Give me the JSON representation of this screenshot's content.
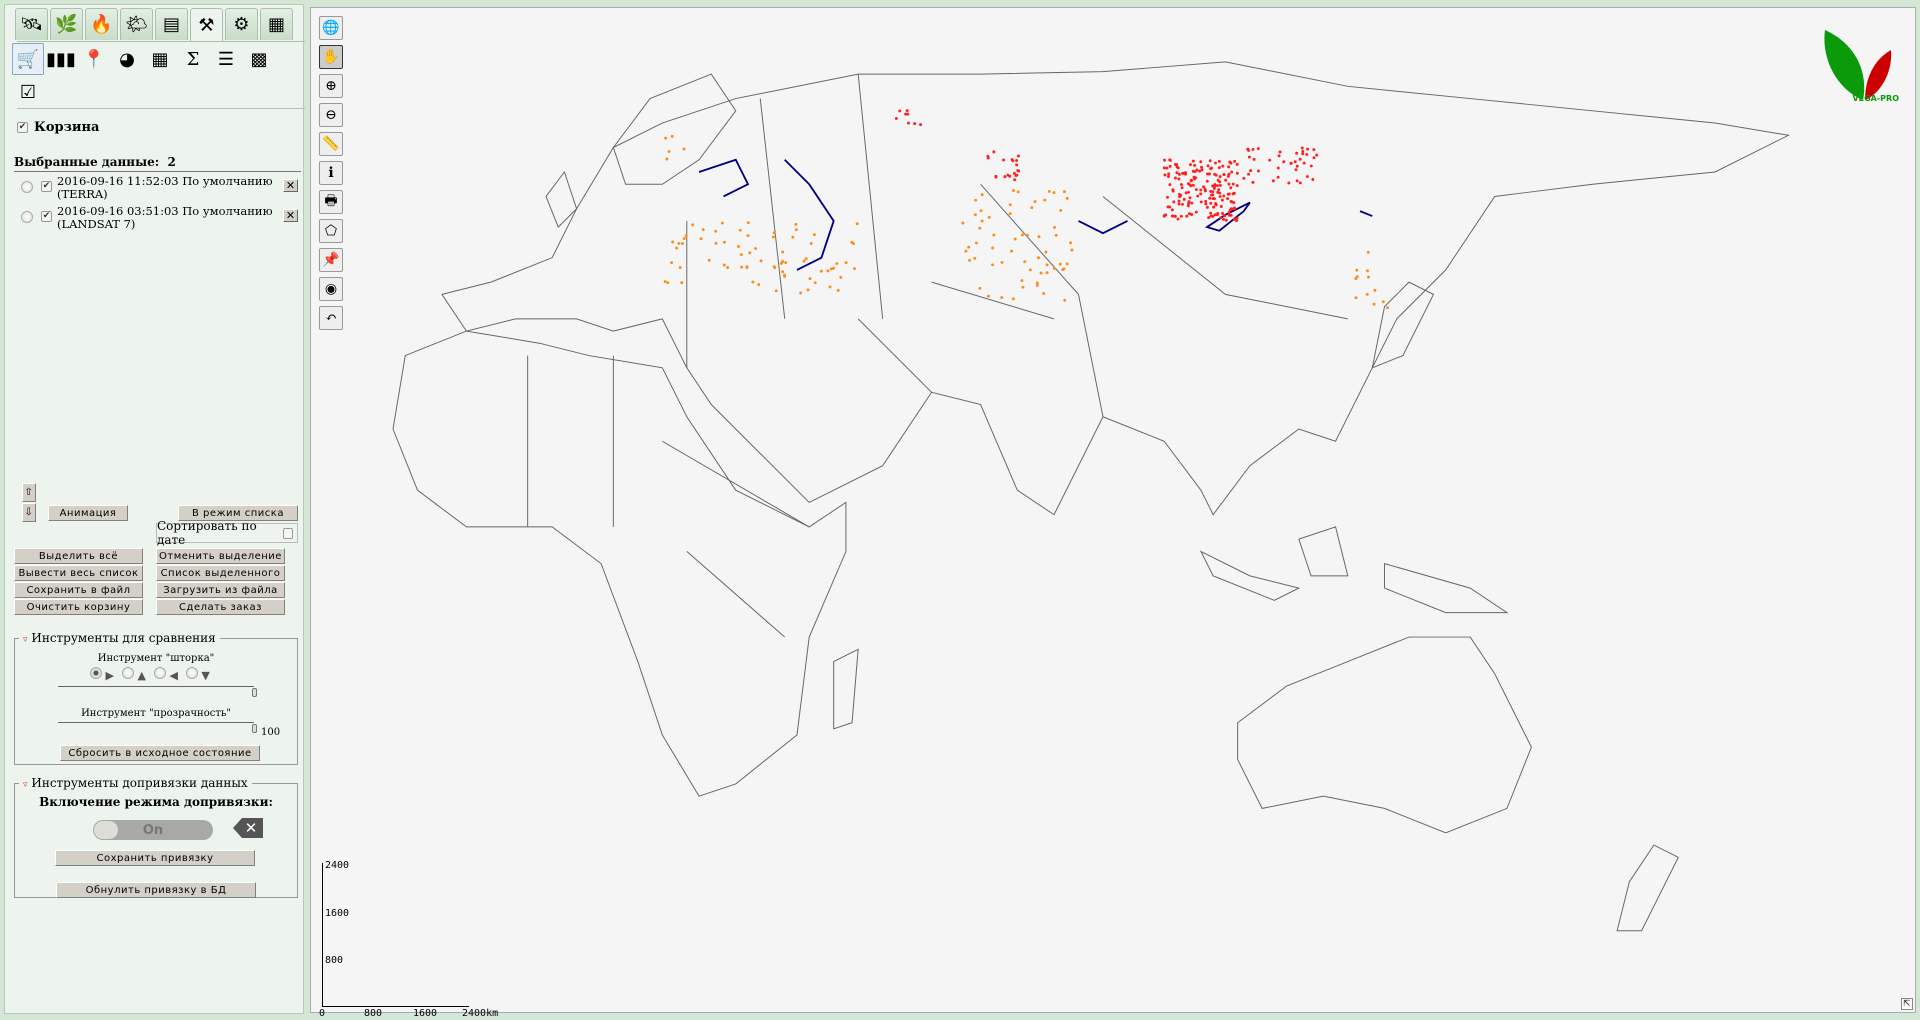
{
  "tabs": [
    {
      "icon": "satellite-icon",
      "glyph": "🛰"
    },
    {
      "icon": "plant-icon",
      "glyph": "🌿"
    },
    {
      "icon": "fire-icon",
      "glyph": "🔥"
    },
    {
      "icon": "weather-icon",
      "glyph": "🌤"
    },
    {
      "icon": "layers-icon",
      "glyph": "▤"
    },
    {
      "icon": "tools-icon",
      "glyph": "⚒",
      "active": true
    },
    {
      "icon": "gear-icon",
      "glyph": "⚙"
    },
    {
      "icon": "table-icon",
      "glyph": "▦"
    }
  ],
  "tools": [
    {
      "icon": "cart-icon",
      "glyph": "🛒",
      "active": true
    },
    {
      "icon": "bands-icon",
      "glyph": "▮▮▮"
    },
    {
      "icon": "location-pin-icon",
      "glyph": "📍"
    },
    {
      "icon": "pie-chart-icon",
      "glyph": "◕"
    },
    {
      "icon": "calculator-icon",
      "glyph": "▦"
    },
    {
      "icon": "sum-icon",
      "glyph": "Σ"
    },
    {
      "icon": "list-icon",
      "glyph": "☰"
    },
    {
      "icon": "map-icon",
      "glyph": "▩"
    },
    {
      "icon": "checklist-icon",
      "glyph": "☑"
    }
  ],
  "basket": {
    "label": "Корзина",
    "checked": true,
    "selected_label": "Выбранные данные:",
    "selected_count": "2",
    "items": [
      {
        "text": "2016-09-16 11:52:03 По умолчанию (TERRA)",
        "checked": true
      },
      {
        "text": "2016-09-16 03:51:03 По умолчанию (LANDSAT 7)",
        "checked": true
      }
    ]
  },
  "buttons": {
    "up": "⇧",
    "down": "⇩",
    "animation": "Анимация",
    "list_mode": "В режим списка",
    "sort_by_date": "Сортировать по дате",
    "select_all": "Выделить всё",
    "deselect": "Отменить выделение",
    "show_all": "Вывести весь список",
    "selected_list": "Список выделенного",
    "save_file": "Сохранить в файл",
    "load_file": "Загрузить из файла",
    "clear_basket": "Очистить корзину",
    "make_order": "Сделать заказ"
  },
  "compare": {
    "title": "Инструменты для сравнения",
    "curtain_label": "Инструмент \"шторка\"",
    "directions": [
      "▶",
      "▲",
      "◀",
      "▼"
    ],
    "selected_direction": 0,
    "curtain_value": 100,
    "transparency_label": "Инструмент \"прозрачность\"",
    "transparency_value": "100",
    "reset": "Сбросить в исходное состояние"
  },
  "binding": {
    "title": "Инструменты допривязки данных",
    "mode_label": "Включение режима допривязки:",
    "toggle": "On",
    "save": "Сохранить привязку",
    "reset_db": "Обнулить привязку в БД"
  },
  "map_tools": [
    {
      "icon": "zoom-extent-icon",
      "glyph": "🌐"
    },
    {
      "icon": "pan-hand-icon",
      "glyph": "✋",
      "active": true
    },
    {
      "icon": "zoom-in-box-icon",
      "glyph": "⊕"
    },
    {
      "icon": "zoom-out-icon",
      "glyph": "⊖"
    },
    {
      "icon": "ruler-icon",
      "glyph": "📏"
    },
    {
      "icon": "info-icon",
      "glyph": "ℹ"
    },
    {
      "icon": "print-icon",
      "glyph": "🖶"
    },
    {
      "icon": "polygon-select-icon",
      "glyph": "⬠"
    },
    {
      "icon": "add-pin-icon",
      "glyph": "📌"
    },
    {
      "icon": "google-earth-icon",
      "glyph": "◉"
    },
    {
      "icon": "undo-icon",
      "glyph": "↶"
    }
  ],
  "scale": {
    "y_ticks": [
      "2400",
      "1600",
      "800"
    ],
    "x_ticks": [
      "0",
      "800",
      "1600",
      "2400km"
    ]
  },
  "logo": {
    "text": "VEGA-PRO"
  },
  "colors": {
    "fire_points": "#ff2020",
    "orange_points": "#ff8c1a",
    "water": "#000080"
  }
}
